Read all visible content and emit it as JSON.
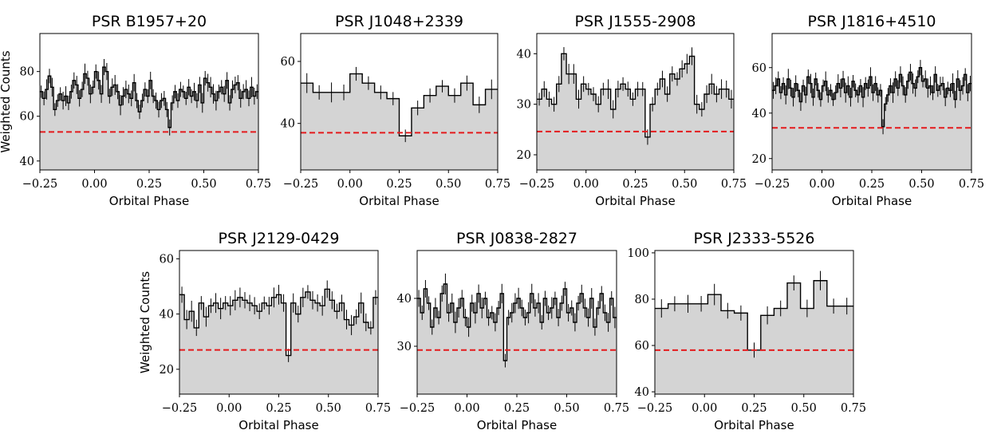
{
  "chart_data": [
    {
      "type": "histogram",
      "title": "PSR B1957+20",
      "xlabel": "Orbital Phase",
      "ylabel": "Weighted Counts",
      "xlim": [
        -0.25,
        0.75
      ],
      "ylim": [
        36,
        97
      ],
      "yticks": [
        40,
        60,
        80
      ],
      "xticks": [
        "−0.25",
        "0.00",
        "0.25",
        "0.50",
        "0.75"
      ],
      "threshold": 53,
      "bins_start": -0.25,
      "values": [
        71,
        68,
        72,
        78,
        73,
        63,
        67,
        70,
        67,
        69,
        66,
        71,
        76,
        74,
        68,
        72,
        79,
        77,
        70,
        73,
        80,
        76,
        70,
        82,
        80,
        69,
        73,
        74,
        71,
        65,
        69,
        72,
        70,
        68,
        75,
        67,
        62,
        67,
        72,
        69,
        76,
        69,
        67,
        63,
        67,
        68,
        63,
        55,
        66,
        71,
        67,
        72,
        71,
        68,
        73,
        69,
        71,
        67,
        74,
        66,
        77,
        75,
        73,
        70,
        67,
        71,
        73,
        70,
        76,
        66,
        72,
        74,
        75,
        68,
        71,
        72,
        68,
        73,
        69,
        71
      ]
    },
    {
      "type": "histogram",
      "title": "PSR J1048+2339",
      "xlabel": "Orbital Phase",
      "ylabel": "",
      "xlim": [
        -0.25,
        0.75
      ],
      "ylim": [
        25,
        69
      ],
      "yticks": [
        40,
        60
      ],
      "xticks": [
        "−0.25",
        "0.00",
        "0.25",
        "0.50",
        "0.75"
      ],
      "threshold": 37,
      "bins_start": -0.25,
      "values": [
        53,
        50,
        50,
        50,
        56,
        53,
        50,
        48,
        36,
        45,
        49,
        52,
        49,
        53,
        46,
        51
      ]
    },
    {
      "type": "histogram",
      "title": "PSR J1555-2908",
      "xlabel": "Orbital Phase",
      "ylabel": "",
      "xlim": [
        -0.25,
        0.75
      ],
      "ylim": [
        17,
        44
      ],
      "yticks": [
        20,
        30,
        40
      ],
      "xticks": [
        "−0.25",
        "0.00",
        "0.25",
        "0.50",
        "0.75"
      ],
      "threshold": 24.6,
      "bins_start": -0.25,
      "values": [
        31,
        33,
        31,
        30,
        34,
        40,
        36,
        36,
        31,
        34,
        33,
        32,
        30,
        33,
        33,
        29,
        33,
        34,
        33,
        31,
        33,
        33,
        23.5,
        30,
        33,
        35,
        32,
        36,
        35,
        37,
        38,
        39.5,
        30,
        29,
        32,
        34,
        32,
        33,
        33,
        31
      ]
    },
    {
      "type": "histogram",
      "title": "PSR J1816+4510",
      "xlabel": "Orbital Phase",
      "ylabel": "",
      "xlim": [
        -0.25,
        0.75
      ],
      "ylim": [
        15,
        75
      ],
      "yticks": [
        20,
        40,
        60
      ],
      "xticks": [
        "−0.25",
        "0.00",
        "0.25",
        "0.50",
        "0.75"
      ],
      "threshold": 33.5,
      "bins_start": -0.25,
      "values": [
        50,
        52,
        55,
        49,
        53,
        48,
        55,
        51,
        47,
        53,
        50,
        45,
        52,
        48,
        56,
        53,
        47,
        55,
        50,
        46,
        52,
        54,
        48,
        50,
        46,
        49,
        53,
        51,
        55,
        49,
        52,
        47,
        54,
        50,
        48,
        52,
        47,
        53,
        51,
        56,
        49,
        53,
        48,
        50,
        34,
        44,
        48,
        52,
        49,
        55,
        51,
        57,
        52,
        48,
        54,
        58,
        53,
        51,
        56,
        60,
        54,
        55,
        51,
        52,
        49,
        57,
        50,
        52,
        53,
        47,
        51,
        50,
        53,
        46,
        55,
        50,
        52,
        57,
        49,
        53
      ]
    },
    {
      "type": "histogram",
      "title": "PSR J2129-0429",
      "xlabel": "Orbital Phase",
      "ylabel": "Weighted Counts",
      "xlim": [
        -0.25,
        0.75
      ],
      "ylim": [
        11,
        63
      ],
      "yticks": [
        20,
        40,
        60
      ],
      "xticks": [
        "−0.25",
        "0.00",
        "0.25",
        "0.50",
        "0.75"
      ],
      "threshold": 27,
      "bins_start": -0.25,
      "values": [
        47,
        38,
        41,
        35,
        44,
        39,
        43,
        44,
        42,
        44,
        43,
        45,
        46,
        45,
        44,
        43,
        41,
        44,
        43,
        46,
        47,
        44,
        25,
        44,
        40,
        46,
        48,
        45,
        44,
        43,
        49,
        45,
        41,
        44,
        38,
        36,
        39,
        44,
        37,
        35,
        46
      ]
    },
    {
      "type": "histogram",
      "title": "PSR J0838-2827",
      "xlabel": "Orbital Phase",
      "ylabel": "",
      "xlim": [
        -0.25,
        0.75
      ],
      "ylim": [
        20,
        50
      ],
      "yticks": [
        30,
        40
      ],
      "xticks": [
        "−0.25",
        "0.00",
        "0.25",
        "0.50",
        "0.75"
      ],
      "threshold": 29.2,
      "bins_start": -0.25,
      "values": [
        40,
        37,
        42,
        39,
        34,
        38,
        36,
        41,
        43,
        37,
        39,
        35,
        38,
        40,
        36,
        34,
        39,
        37,
        41,
        38,
        40,
        36,
        37,
        35,
        38,
        41,
        27,
        36,
        37,
        39,
        40,
        38,
        36,
        37,
        41,
        38,
        39,
        35,
        40,
        37,
        38,
        40,
        36,
        39,
        42,
        37,
        38,
        35,
        39,
        41,
        38,
        36,
        40,
        34,
        38,
        41,
        37,
        35,
        40,
        36
      ]
    },
    {
      "type": "histogram",
      "title": "PSR J2333-5526",
      "xlabel": "Orbital Phase",
      "ylabel": "",
      "xlim": [
        -0.25,
        0.75
      ],
      "ylim": [
        39,
        101
      ],
      "yticks": [
        40,
        60,
        80,
        100
      ],
      "xticks": [
        "−0.25",
        "0.00",
        "0.25",
        "0.50",
        "0.75"
      ],
      "threshold": 58,
      "bins_start": -0.25,
      "values": [
        76,
        78,
        78,
        78,
        82,
        75,
        74,
        58,
        73,
        76,
        87,
        76,
        88,
        77,
        77
      ]
    }
  ],
  "style": {
    "fill_color": "#d4d4d4",
    "line_color": "#000000",
    "threshold_color": "#e41a1c"
  }
}
